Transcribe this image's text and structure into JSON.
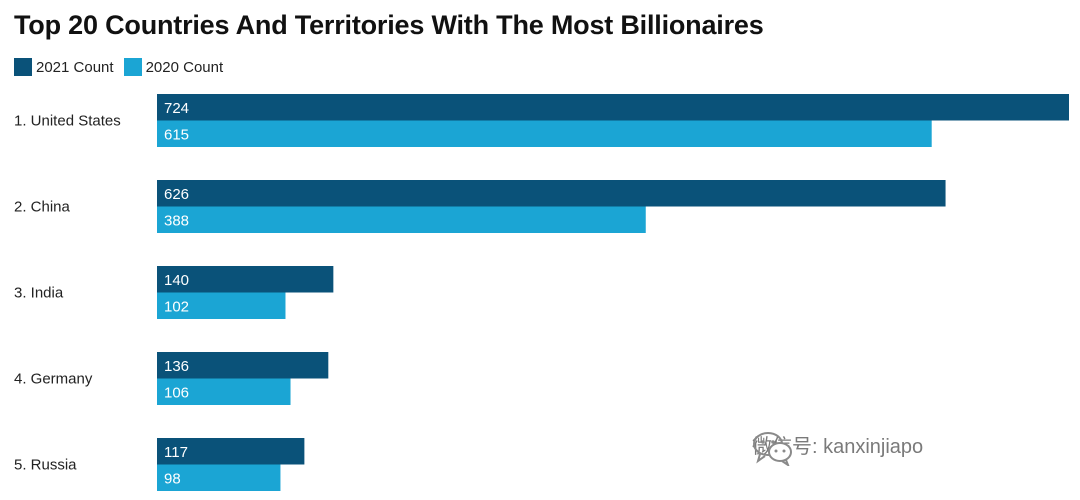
{
  "chart_data": {
    "type": "bar",
    "orientation": "horizontal",
    "title": "Top 20 Countries And Territories With The Most Billionaires",
    "categories": [
      "1. United States",
      "2. China",
      "3. India",
      "4. Germany",
      "5. Russia"
    ],
    "series": [
      {
        "name": "2021 Count",
        "color": "#0a5279",
        "values": [
          724,
          626,
          140,
          136,
          117
        ]
      },
      {
        "name": "2020 Count",
        "color": "#1ba5d4",
        "values": [
          615,
          388,
          102,
          106,
          98
        ]
      }
    ],
    "xlim": [
      0,
      724
    ],
    "grid": false,
    "legend": "top-left"
  },
  "watermark": {
    "text": "微信号: kanxinjiapo",
    "icon": "wechat-icon"
  }
}
